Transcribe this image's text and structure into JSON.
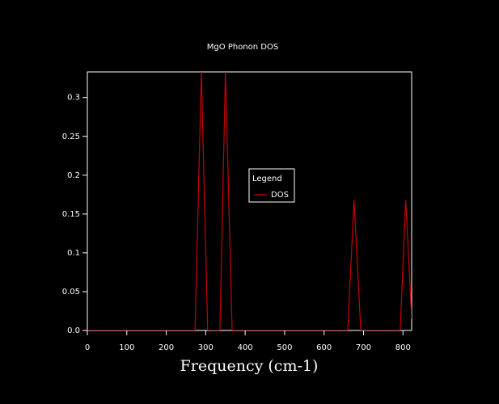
{
  "chart_data": {
    "type": "line",
    "title": "MgO Phonon DOS",
    "xlabel": "Frequency (cm-1)",
    "x": [
      0,
      273,
      289,
      305,
      336,
      350,
      367,
      660,
      676,
      693,
      793,
      807,
      822
    ],
    "series": [
      {
        "name": "DOS",
        "color": "#cc0000",
        "values": [
          0,
          0,
          0.333,
          0,
          0,
          0.333,
          0,
          0,
          0.168,
          0,
          0,
          0.168,
          0.015
        ]
      }
    ],
    "xlim": [
      0,
      822
    ],
    "ylim": [
      0,
      0.333
    ],
    "xticks": [
      0,
      100,
      200,
      300,
      400,
      500,
      600,
      700,
      800
    ],
    "yticks": [
      {
        "value": 0,
        "label": "0.0"
      },
      0.05,
      0.1,
      0.15,
      0.2,
      0.25,
      0.3
    ],
    "grid": false,
    "legend_title": "Legend",
    "legend_position": "center"
  }
}
